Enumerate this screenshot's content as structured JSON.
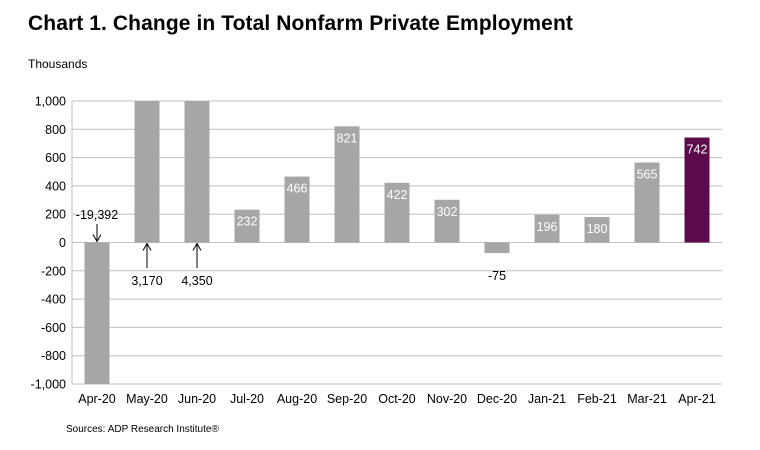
{
  "header": {
    "title": "Chart 1. Change in Total Nonfarm Private Employment",
    "unit_label": "Thousands",
    "source": "Sources: ADP Research Institute®"
  },
  "chart_data": {
    "type": "bar",
    "title": "Chart 1. Change in Total Nonfarm Private Employment",
    "ylabel": "Thousands",
    "xlabel": "",
    "ylim": [
      -1000,
      1000
    ],
    "yticks": [
      -1000,
      -800,
      -600,
      -400,
      -200,
      0,
      200,
      400,
      600,
      800,
      1000
    ],
    "ytick_labels": [
      "-1,000",
      "-800",
      "-600",
      "-400",
      "-200",
      "0",
      "200",
      "400",
      "600",
      "800",
      "1,000"
    ],
    "grid": true,
    "categories": [
      "Apr-20",
      "May-20",
      "Jun-20",
      "Jul-20",
      "Aug-20",
      "Sep-20",
      "Oct-20",
      "Nov-20",
      "Dec-20",
      "Jan-21",
      "Feb-21",
      "Mar-21",
      "Apr-21"
    ],
    "values": [
      -19392,
      3170,
      4350,
      232,
      466,
      821,
      422,
      302,
      -75,
      196,
      180,
      565,
      742
    ],
    "value_labels": [
      "-19,392",
      "3,170",
      "4,350",
      "232",
      "466",
      "821",
      "422",
      "302",
      "-75",
      "196",
      "180",
      "565",
      "742"
    ],
    "colors": {
      "default": "#a6a6a6",
      "highlight": "#5b0a4a",
      "grid": "#bfbfbf"
    },
    "highlight_index": 12
  }
}
